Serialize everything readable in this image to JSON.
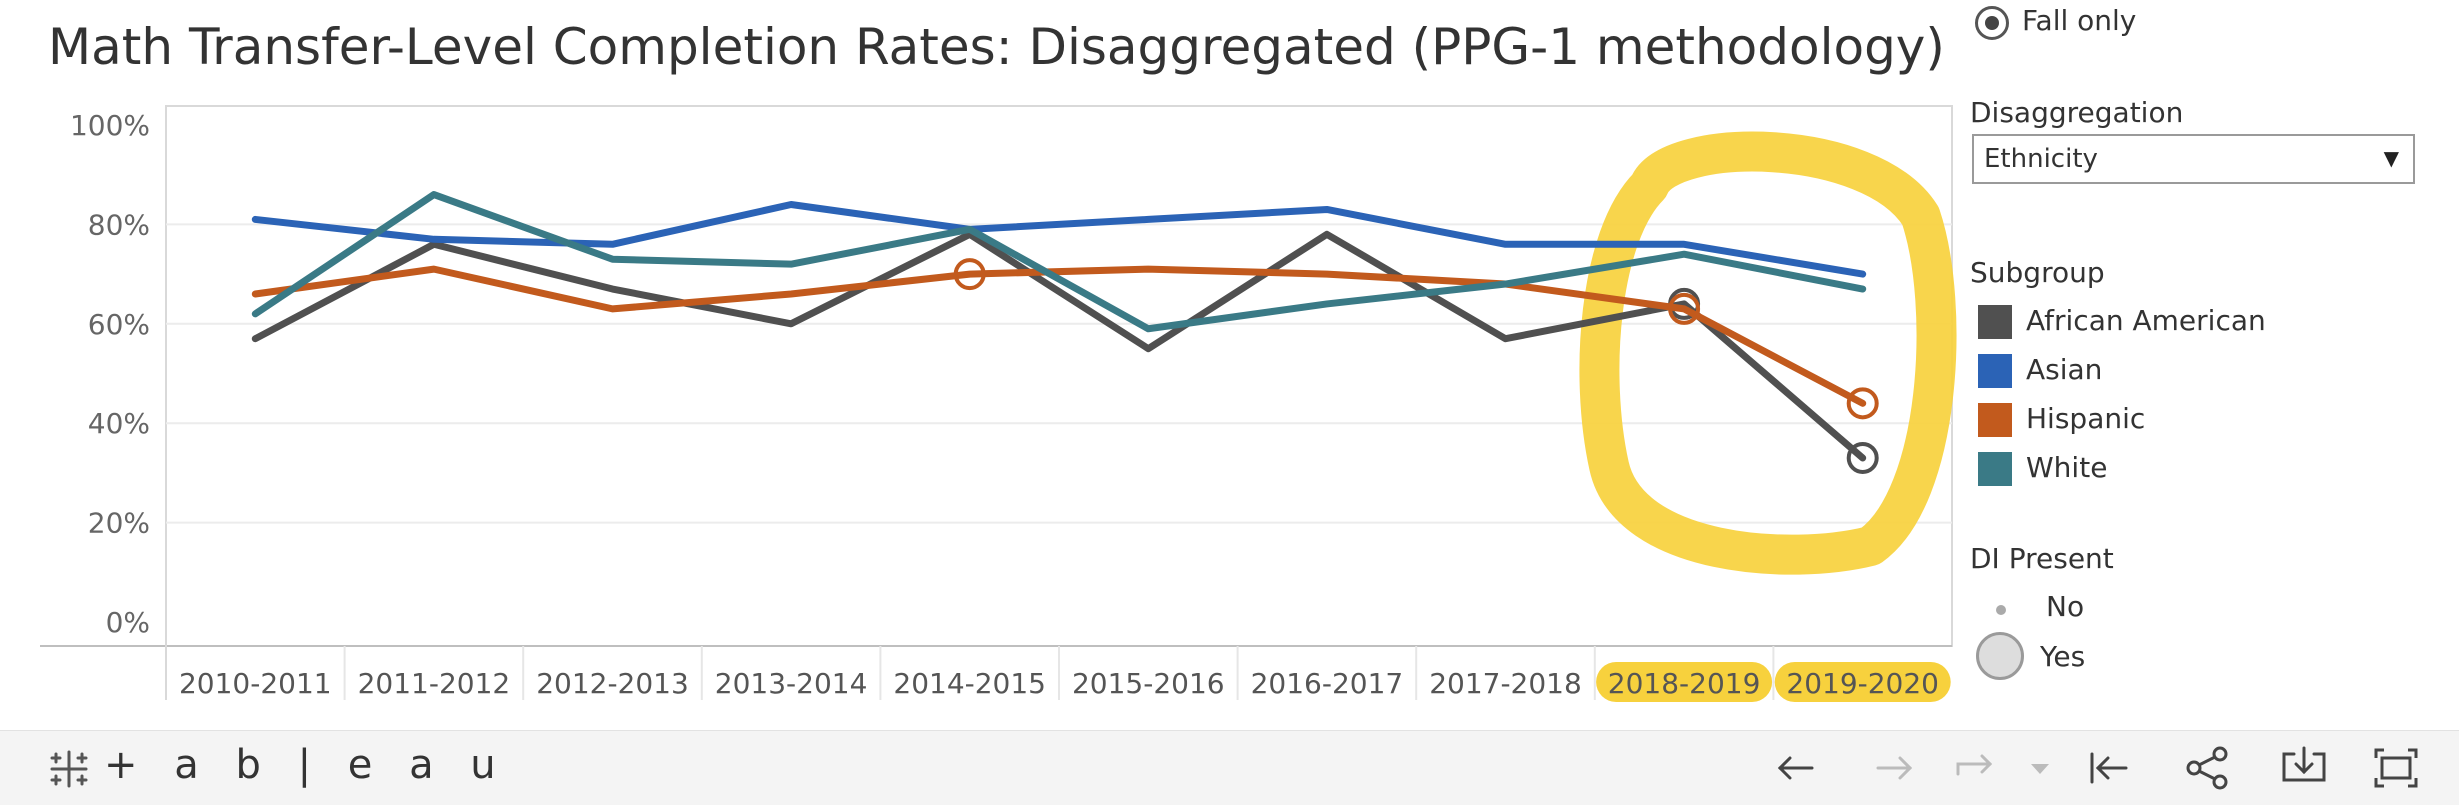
{
  "header": {
    "title": "Math Transfer-Level Completion Rates: Disaggregated (PPG-1 methodology)"
  },
  "filters": {
    "term_option": "Fall only",
    "disaggregation_title": "Disaggregation",
    "disaggregation_value": "Ethnicity",
    "subgroup_title": "Subgroup",
    "subgroups": [
      {
        "label": "African American",
        "color": "#505050"
      },
      {
        "label": "Asian",
        "color": "#2b63b6"
      },
      {
        "label": "Hispanic",
        "color": "#c25a1d"
      },
      {
        "label": "White",
        "color": "#3a7a86"
      }
    ],
    "di_title": "DI Present",
    "di_no": "No",
    "di_yes": "Yes"
  },
  "toolbar": {
    "logo_text": "+ a b | e a u",
    "icons": [
      "undo-icon",
      "redo-icon",
      "revert-icon",
      "reset-icon",
      "share-icon",
      "download-icon",
      "fullscreen-icon"
    ]
  },
  "highlight_color": "#f7d13d",
  "chart_data": {
    "type": "line",
    "title": "Math Transfer-Level Completion Rates: Disaggregated (PPG-1 methodology)",
    "xlabel": "",
    "ylabel": "",
    "ylim": [
      0,
      100
    ],
    "y_ticks": [
      "0%",
      "20%",
      "40%",
      "60%",
      "80%",
      "100%"
    ],
    "categories": [
      "2010-2011",
      "2011-2012",
      "2012-2013",
      "2013-2014",
      "2014-2015",
      "2015-2016",
      "2016-2017",
      "2017-2018",
      "2018-2019",
      "2019-2020"
    ],
    "highlighted_categories": [
      "2018-2019",
      "2019-2020"
    ],
    "grid": true,
    "legend_position": "right",
    "series": [
      {
        "name": "African American",
        "color": "#505050",
        "values": [
          57,
          76,
          67,
          60,
          78,
          55,
          78,
          57,
          64,
          33
        ],
        "di_flags": [
          false,
          false,
          false,
          false,
          false,
          false,
          false,
          false,
          true,
          true
        ]
      },
      {
        "name": "Asian",
        "color": "#2b63b6",
        "values": [
          81,
          77,
          76,
          84,
          79,
          81,
          83,
          76,
          76,
          70
        ],
        "di_flags": [
          false,
          false,
          false,
          false,
          false,
          false,
          false,
          false,
          false,
          false
        ]
      },
      {
        "name": "Hispanic",
        "color": "#c25a1d",
        "values": [
          66,
          71,
          63,
          66,
          70,
          71,
          70,
          68,
          63,
          44
        ],
        "di_flags": [
          false,
          false,
          false,
          false,
          true,
          false,
          false,
          false,
          true,
          true
        ]
      },
      {
        "name": "White",
        "color": "#3a7a86",
        "values": [
          62,
          86,
          73,
          72,
          79,
          59,
          64,
          68,
          74,
          67
        ],
        "di_flags": [
          false,
          false,
          false,
          false,
          false,
          false,
          false,
          false,
          false,
          false
        ]
      }
    ]
  }
}
